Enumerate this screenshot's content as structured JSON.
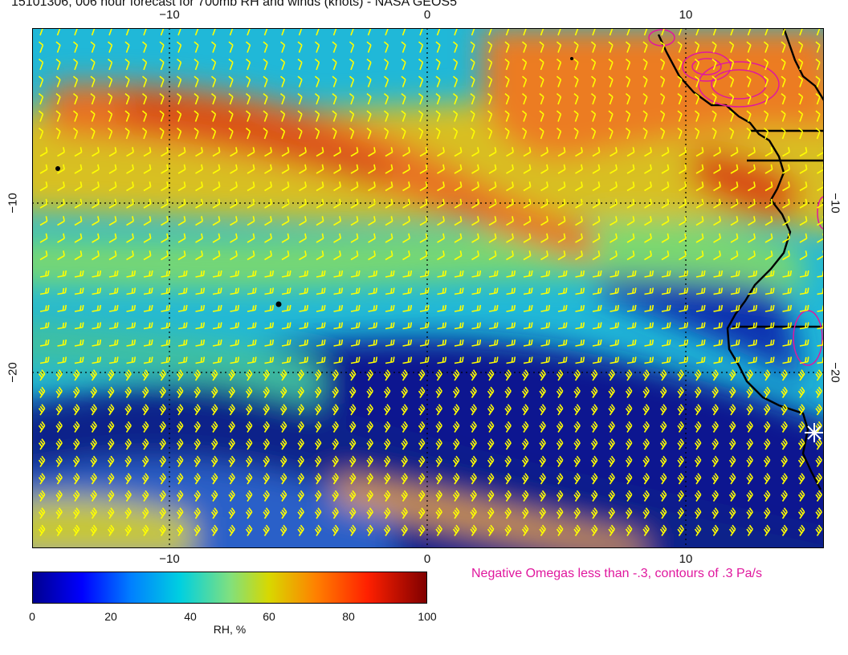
{
  "title": "15101306, 006 hour forecast for 700mb RH and winds (knots) - NASA GEOS5",
  "axes": {
    "x_ticks": [
      "−10",
      "0",
      "10"
    ],
    "y_ticks": [
      "−10",
      "−20"
    ]
  },
  "legend": {
    "omega_note": "Negative Omegas less than -.3, contours of .3 Pa/s",
    "colorbar_title": "RH, %",
    "colorbar_ticks": [
      "0",
      "20",
      "40",
      "60",
      "80",
      "100"
    ],
    "colorbar_colors": [
      "#00008f",
      "#0000ff",
      "#0080ff",
      "#00d0e0",
      "#7fe07f",
      "#d8d800",
      "#ff8000",
      "#ff2000",
      "#800000"
    ]
  },
  "colors": {
    "wind_barbs": "#ffff00",
    "omega_contours": "#e0189e",
    "coastline": "#000000"
  },
  "icons": {
    "station_marker": "asterisk-icon"
  }
}
